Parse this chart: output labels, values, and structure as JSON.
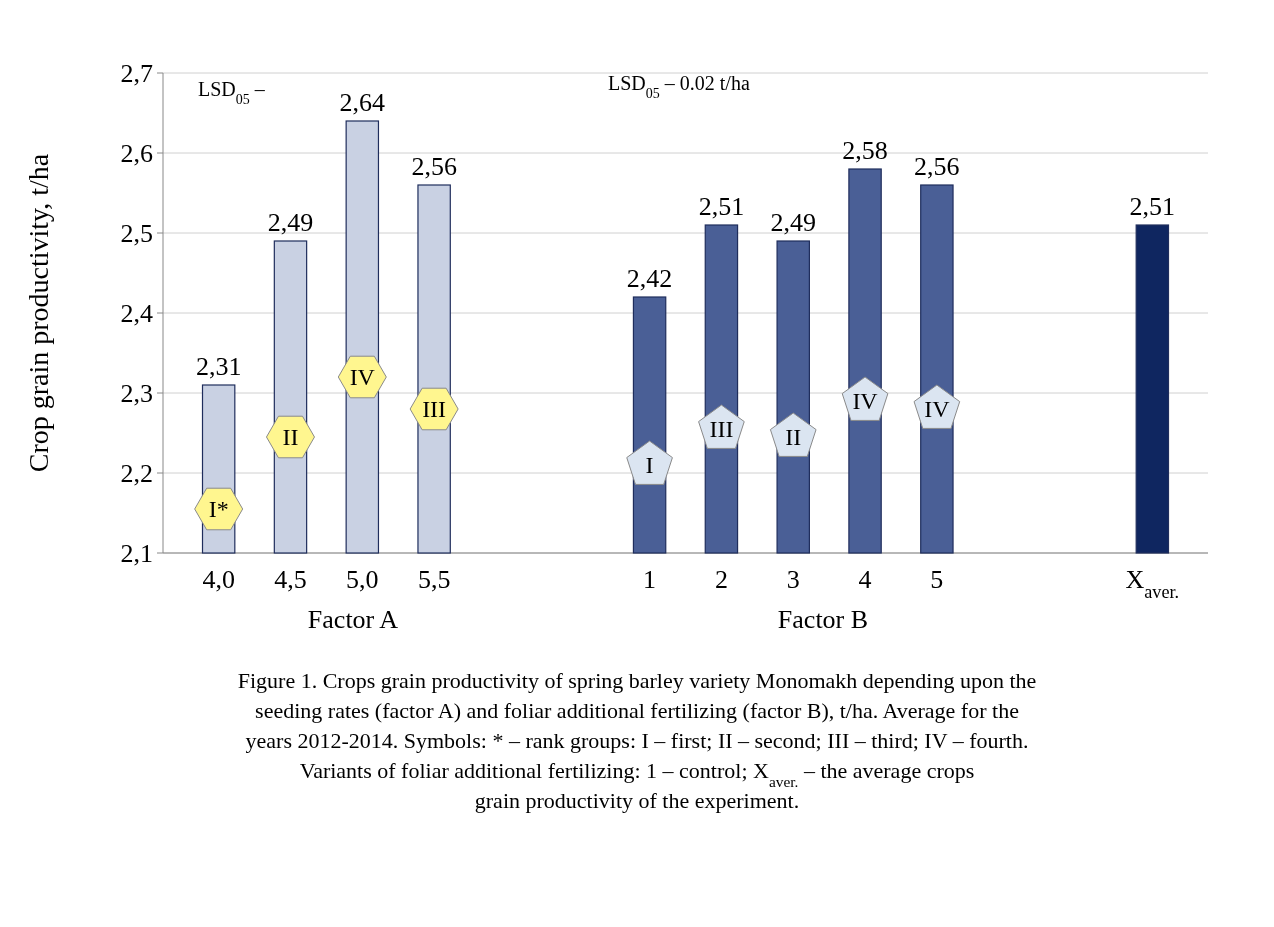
{
  "chart_data": {
    "type": "bar",
    "ylabel": "Crop grain productivity, t/ha",
    "categories": [
      "4,0",
      "4,5",
      "5,0",
      "5,5",
      null,
      null,
      "1",
      "2",
      "3",
      "4",
      "5",
      null,
      null,
      "X$_{aver.}$"
    ],
    "values": [
      2.31,
      2.49,
      2.64,
      2.56,
      null,
      null,
      2.42,
      2.51,
      2.49,
      2.58,
      2.56,
      null,
      null,
      2.51
    ],
    "value_labels": [
      "2,31",
      "2,49",
      "2,64",
      "2,56",
      null,
      null,
      "2,42",
      "2,51",
      "2,49",
      "2,58",
      "2,56",
      null,
      null,
      "2,51"
    ],
    "colors": [
      "#c9d1e3",
      "#c9d1e3",
      "#c9d1e3",
      "#c9d1e3",
      null,
      null,
      "#4a5f96",
      "#4a5f96",
      "#4a5f96",
      "#4a5f96",
      "#4a5f96",
      null,
      null,
      "#0f2660"
    ],
    "ylim": [
      2.1,
      2.7
    ],
    "yticks": [
      {
        "value": 2.1,
        "label": "2,1"
      },
      {
        "value": 2.2,
        "label": "2,2"
      },
      {
        "value": 2.3,
        "label": "2,3"
      },
      {
        "value": 2.4,
        "label": "2,4"
      },
      {
        "value": 2.5,
        "label": "2,5"
      },
      {
        "value": 2.6,
        "label": "2,6"
      },
      {
        "value": 2.7,
        "label": "2,7"
      }
    ],
    "grid": "y",
    "annotations": [
      "LSD$_{05}$ –",
      "LSD$_{05}$ – 0.02 t/ha",
      "Factor A",
      "Factor B",
      "Figure 1. Crops grain productivity of spring barley variety Monomakh depending upon the seeding rates (factor A) and foliar additional fertilizing (factor B), t/ha. Average for the years 2012-2014. Symbols: * – rank groups: I – first; II – second; III – third; IV – fourth. Variants of foliar additional fertilizing: 1 – control; X$_{aver.}$ – the average crops grain productivity of the experiment.",
      "I*",
      "II",
      "IV",
      "III",
      "I",
      "III",
      "II",
      "IV",
      "IV"
    ]
  }
}
